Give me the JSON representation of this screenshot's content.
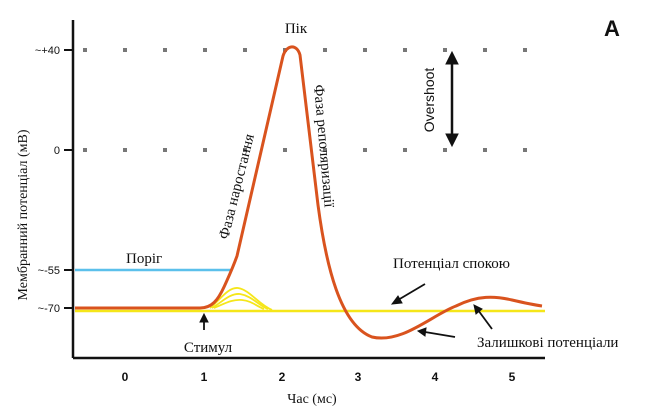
{
  "panel_label": "A",
  "axes": {
    "x_label": "Час (мс)",
    "y_label": "Мембранний потенціал (мВ)",
    "x_ticks": [
      "0",
      "1",
      "2",
      "3",
      "4",
      "5"
    ],
    "y_ticks": [
      "~+40",
      "0",
      "~-55",
      "~-70"
    ]
  },
  "annotations": {
    "peak": "Пік",
    "rising_phase": "Фаза наростання",
    "repolarization_phase": "Фаза реполяризації",
    "overshoot": "Overshoot",
    "threshold": "Поріг",
    "resting_potential": "Потенціал спокою",
    "stimulus": "Стимул",
    "afterpotentials": "Залишкові потенціали"
  },
  "colors": {
    "action_potential": "#d9531e",
    "threshold_line": "#5bc0eb",
    "resting_line": "#f5e61a",
    "subthreshold": "#f5e61a",
    "axis": "#111111",
    "dots": "#777777"
  }
}
